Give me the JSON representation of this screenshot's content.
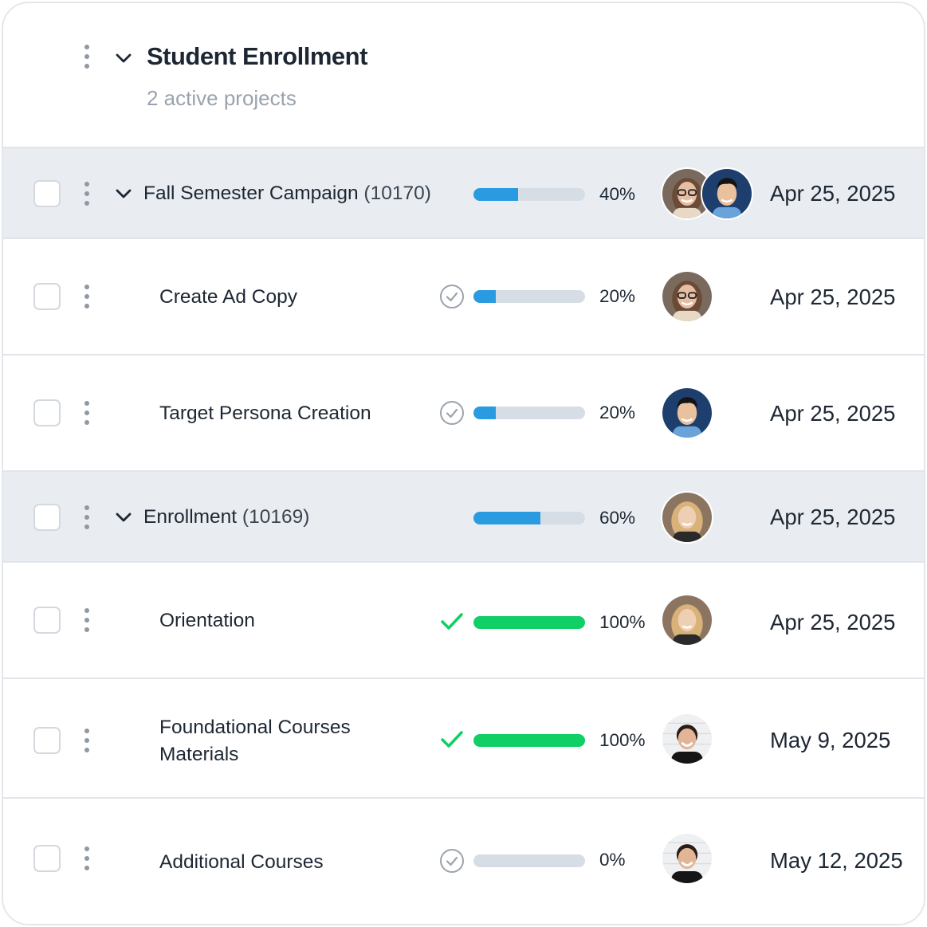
{
  "project": {
    "title": "Student Enrollment",
    "subtitle": "2 active projects"
  },
  "colors": {
    "progress_blue": "#2b9be1",
    "progress_green": "#10cf64",
    "group_row_bg": "#e9edf1"
  },
  "rows": [
    {
      "kind": "group",
      "name": "Fall Semester Campaign",
      "code": "(10170)",
      "progress": 0.4,
      "percent_label": "40%",
      "status_icon": "none",
      "assignees": [
        "avatar-woman-glasses",
        "avatar-man-blue-shirt"
      ],
      "date": "Apr 25, 2025"
    },
    {
      "kind": "task",
      "name": "Create Ad Copy",
      "progress": 0.2,
      "percent_label": "20%",
      "status_icon": "check-circle-icon",
      "assignees": [
        "avatar-woman-glasses"
      ],
      "date": "Apr 25, 2025"
    },
    {
      "kind": "task",
      "name": "Target Persona Creation",
      "progress": 0.2,
      "percent_label": "20%",
      "status_icon": "check-circle-icon",
      "assignees": [
        "avatar-man-blue-shirt"
      ],
      "date": "Apr 25, 2025"
    },
    {
      "kind": "group",
      "name": "Enrollment",
      "code": "(10169)",
      "progress": 0.6,
      "percent_label": "60%",
      "status_icon": "none",
      "assignees": [
        "avatar-woman-blonde"
      ],
      "date": "Apr 25, 2025"
    },
    {
      "kind": "task",
      "name": "Orientation",
      "progress": 1.0,
      "percent_label": "100%",
      "status_icon": "checkmark-icon",
      "assignees": [
        "avatar-woman-blonde"
      ],
      "date": "Apr 25, 2025"
    },
    {
      "kind": "task",
      "name_line1": "Foundational Courses",
      "name_line2": "Materials",
      "progress": 1.0,
      "percent_label": "100%",
      "status_icon": "checkmark-icon",
      "assignees": [
        "avatar-woman-dark-hair"
      ],
      "date": "May 9, 2025"
    },
    {
      "kind": "task",
      "name": "Additional Courses",
      "progress": 0.0,
      "percent_label": "0%",
      "status_icon": "check-circle-icon",
      "assignees": [
        "avatar-woman-dark-hair"
      ],
      "date": "May 12, 2025"
    }
  ]
}
